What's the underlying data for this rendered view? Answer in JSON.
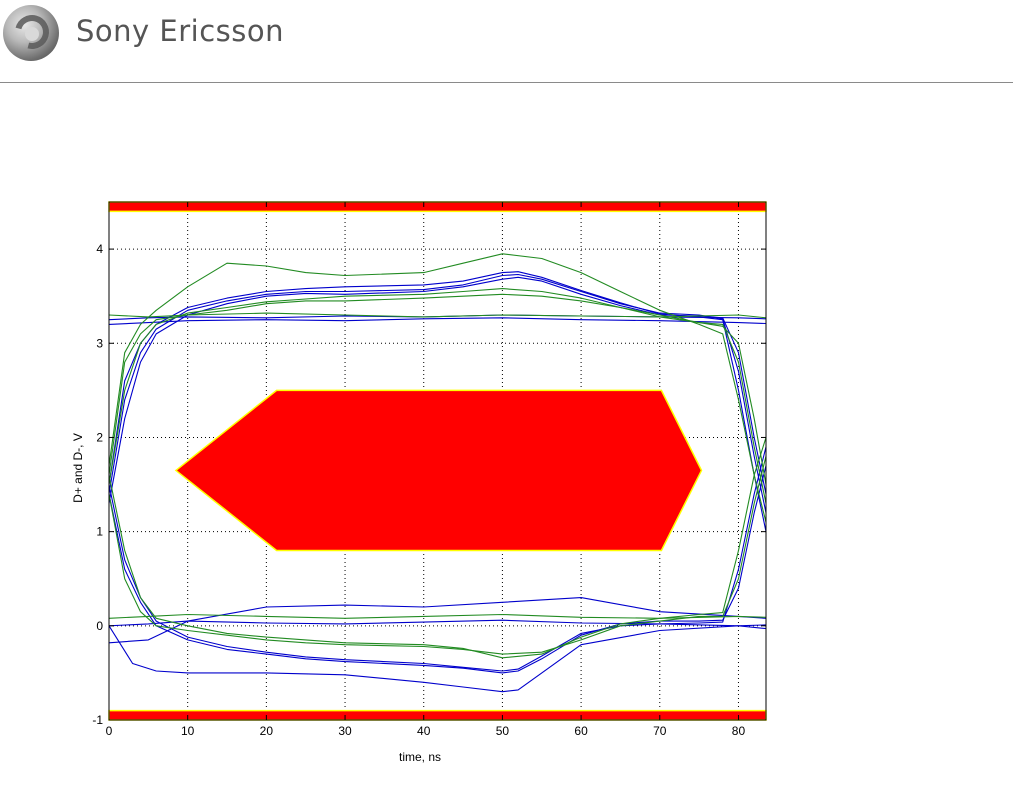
{
  "brand": {
    "name": "Sony Ericsson"
  },
  "chart_data": {
    "type": "line",
    "title": "",
    "xlabel": "time, ns",
    "ylabel": "D+ and D-, V",
    "xlim": [
      0,
      83.5
    ],
    "ylim": [
      -1,
      4.5
    ],
    "xticks": [
      0,
      10,
      20,
      30,
      40,
      50,
      60,
      70,
      80
    ],
    "yticks": [
      -1,
      0,
      1,
      2,
      3,
      4
    ],
    "grid": true,
    "colors": {
      "mask": "#ff0000",
      "mask_edge": "#ffff00",
      "series_a": "#0000cc",
      "series_b": "#228b22"
    },
    "masks": [
      {
        "name": "",
        "points": [
          [
            0,
            4.5
          ],
          [
            83.5,
            4.5
          ],
          [
            83.5,
            4.4
          ],
          [
            0,
            4.4
          ]
        ]
      },
      {
        "name": "",
        "points": [
          [
            0,
            -0.9
          ],
          [
            83.5,
            -0.9
          ],
          [
            83.5,
            -1.0
          ],
          [
            0,
            -1.0
          ]
        ]
      },
      {
        "name": "",
        "points": [
          [
            8.5,
            1.65
          ],
          [
            21.3,
            2.5
          ],
          [
            70.2,
            2.5
          ],
          [
            75.3,
            1.65
          ],
          [
            70.2,
            0.8
          ],
          [
            21.3,
            0.8
          ]
        ]
      }
    ],
    "series": [
      {
        "color": "#0000cc",
        "x": [
          0,
          2,
          4,
          6,
          10,
          15,
          20,
          25,
          30,
          40,
          45,
          50,
          52,
          55,
          60,
          65,
          70,
          75,
          78,
          80,
          82,
          83.5
        ],
        "y": [
          1.4,
          2.4,
          2.9,
          3.15,
          3.35,
          3.45,
          3.52,
          3.55,
          3.55,
          3.57,
          3.62,
          3.72,
          3.73,
          3.68,
          3.55,
          3.42,
          3.32,
          3.3,
          3.26,
          2.7,
          1.8,
          1.2
        ]
      },
      {
        "color": "#0000cc",
        "x": [
          0,
          2,
          4,
          6,
          10,
          15,
          20,
          25,
          30,
          40,
          45,
          50,
          52,
          55,
          60,
          65,
          70,
          75,
          78,
          80,
          82,
          83.5
        ],
        "y": [
          1.5,
          2.6,
          3.0,
          3.2,
          3.38,
          3.48,
          3.55,
          3.58,
          3.6,
          3.62,
          3.66,
          3.75,
          3.76,
          3.7,
          3.56,
          3.43,
          3.31,
          3.28,
          3.25,
          2.5,
          1.6,
          1.0
        ]
      },
      {
        "color": "#0000cc",
        "x": [
          0,
          2,
          4,
          6,
          10,
          15,
          20,
          25,
          30,
          40,
          45,
          50,
          52,
          55,
          60,
          65,
          70,
          75,
          78,
          80,
          82,
          83.5
        ],
        "y": [
          1.3,
          2.2,
          2.8,
          3.1,
          3.3,
          3.42,
          3.5,
          3.53,
          3.52,
          3.55,
          3.6,
          3.68,
          3.7,
          3.66,
          3.52,
          3.4,
          3.3,
          3.29,
          3.27,
          2.9,
          2.0,
          1.4
        ]
      },
      {
        "color": "#0000cc",
        "x": [
          0,
          5,
          10,
          20,
          30,
          40,
          50,
          60,
          70,
          80,
          83.5
        ],
        "y": [
          3.25,
          3.27,
          3.28,
          3.27,
          3.29,
          3.28,
          3.3,
          3.29,
          3.28,
          3.27,
          3.26
        ]
      },
      {
        "color": "#0000cc",
        "x": [
          0,
          5,
          10,
          20,
          30,
          40,
          50,
          60,
          70,
          80,
          83.5
        ],
        "y": [
          3.2,
          3.22,
          3.24,
          3.25,
          3.24,
          3.26,
          3.27,
          3.25,
          3.24,
          3.22,
          3.21
        ]
      },
      {
        "color": "#0000cc",
        "x": [
          0,
          2,
          4,
          6,
          10,
          15,
          20,
          25,
          30,
          40,
          45,
          50,
          52,
          55,
          60,
          65,
          70,
          75,
          78,
          80,
          82,
          83.5
        ],
        "y": [
          1.4,
          0.6,
          0.25,
          0.0,
          -0.15,
          -0.25,
          -0.3,
          -0.35,
          -0.38,
          -0.42,
          -0.45,
          -0.5,
          -0.48,
          -0.35,
          -0.1,
          0.02,
          0.05,
          0.05,
          0.06,
          0.4,
          1.2,
          1.7
        ]
      },
      {
        "color": "#0000cc",
        "x": [
          0,
          2,
          4,
          6,
          10,
          15,
          20,
          25,
          30,
          40,
          45,
          50,
          52,
          55,
          60,
          65,
          70,
          75,
          78,
          80,
          82,
          83.5
        ],
        "y": [
          1.5,
          0.7,
          0.3,
          0.05,
          -0.12,
          -0.22,
          -0.28,
          -0.33,
          -0.36,
          -0.4,
          -0.44,
          -0.48,
          -0.46,
          -0.32,
          -0.08,
          0.0,
          0.02,
          0.03,
          0.04,
          0.6,
          1.4,
          1.9
        ]
      },
      {
        "color": "#0000cc",
        "x": [
          0,
          3,
          6,
          10,
          20,
          30,
          40,
          45,
          50,
          52,
          55,
          60,
          70,
          80,
          83.5
        ],
        "y": [
          0.0,
          -0.4,
          -0.48,
          -0.5,
          -0.5,
          -0.52,
          -0.6,
          -0.65,
          -0.7,
          -0.68,
          -0.5,
          -0.2,
          -0.05,
          0.0,
          -0.03
        ]
      },
      {
        "color": "#0000cc",
        "x": [
          0,
          5,
          10,
          20,
          30,
          40,
          50,
          60,
          70,
          80,
          83.5
        ],
        "y": [
          0.0,
          0.02,
          0.05,
          0.03,
          0.02,
          0.04,
          0.06,
          0.03,
          0.02,
          0.0,
          0.01
        ]
      },
      {
        "color": "#0000cc",
        "x": [
          0,
          5,
          10,
          20,
          30,
          40,
          50,
          60,
          70,
          80,
          83.5
        ],
        "y": [
          -0.18,
          -0.15,
          0.05,
          0.2,
          0.22,
          0.2,
          0.25,
          0.3,
          0.15,
          0.1,
          0.08
        ]
      },
      {
        "color": "#228b22",
        "x": [
          0,
          2,
          4,
          6,
          10,
          15,
          20,
          25,
          30,
          40,
          45,
          50,
          55,
          60,
          65,
          70,
          75,
          78,
          80,
          82,
          83.5
        ],
        "y": [
          1.6,
          2.8,
          3.1,
          3.25,
          3.3,
          3.35,
          3.42,
          3.45,
          3.45,
          3.48,
          3.5,
          3.52,
          3.5,
          3.45,
          3.38,
          3.3,
          3.22,
          3.2,
          2.8,
          1.9,
          1.3
        ]
      },
      {
        "color": "#228b22",
        "x": [
          0,
          2,
          4,
          6,
          10,
          15,
          20,
          25,
          30,
          40,
          45,
          50,
          55,
          60,
          65,
          70,
          75,
          78,
          80,
          82,
          83.5
        ],
        "y": [
          1.7,
          2.9,
          3.2,
          3.35,
          3.6,
          3.85,
          3.82,
          3.75,
          3.72,
          3.75,
          3.85,
          3.95,
          3.9,
          3.75,
          3.55,
          3.35,
          3.2,
          3.1,
          2.4,
          1.6,
          1.1
        ]
      },
      {
        "color": "#228b22",
        "x": [
          0,
          2,
          4,
          6,
          10,
          15,
          20,
          25,
          30,
          40,
          45,
          50,
          55,
          60,
          65,
          70,
          75,
          78,
          80,
          82,
          83.5
        ],
        "y": [
          1.5,
          2.5,
          3.0,
          3.2,
          3.32,
          3.38,
          3.44,
          3.47,
          3.5,
          3.52,
          3.55,
          3.58,
          3.55,
          3.48,
          3.38,
          3.28,
          3.22,
          3.18,
          3.0,
          2.2,
          1.5
        ]
      },
      {
        "color": "#228b22",
        "x": [
          0,
          2,
          4,
          6,
          10,
          15,
          20,
          25,
          30,
          40,
          45,
          50,
          55,
          60,
          65,
          70,
          75,
          78,
          80,
          82,
          83.5
        ],
        "y": [
          1.4,
          0.5,
          0.15,
          0.0,
          -0.05,
          -0.1,
          -0.15,
          -0.18,
          -0.2,
          -0.22,
          -0.25,
          -0.3,
          -0.28,
          -0.15,
          0.0,
          0.05,
          0.1,
          0.1,
          0.5,
          1.3,
          1.8
        ]
      },
      {
        "color": "#228b22",
        "x": [
          0,
          2,
          4,
          6,
          10,
          15,
          20,
          25,
          30,
          40,
          45,
          50,
          55,
          60,
          65,
          70,
          75,
          78,
          80,
          82,
          83.5
        ],
        "y": [
          1.6,
          0.8,
          0.3,
          0.08,
          0.0,
          -0.08,
          -0.12,
          -0.15,
          -0.18,
          -0.2,
          -0.24,
          -0.34,
          -0.3,
          -0.12,
          0.02,
          0.08,
          0.12,
          0.14,
          0.8,
          1.6,
          2.0
        ]
      },
      {
        "color": "#228b22",
        "x": [
          0,
          5,
          10,
          20,
          30,
          40,
          50,
          60,
          70,
          80,
          83.5
        ],
        "y": [
          0.08,
          0.1,
          0.12,
          0.1,
          0.08,
          0.1,
          0.12,
          0.09,
          0.08,
          0.1,
          0.09
        ]
      },
      {
        "color": "#228b22",
        "x": [
          0,
          5,
          10,
          20,
          30,
          40,
          50,
          60,
          70,
          80,
          83.5
        ],
        "y": [
          3.3,
          3.28,
          3.3,
          3.32,
          3.3,
          3.28,
          3.3,
          3.29,
          3.28,
          3.3,
          3.27
        ]
      }
    ]
  }
}
